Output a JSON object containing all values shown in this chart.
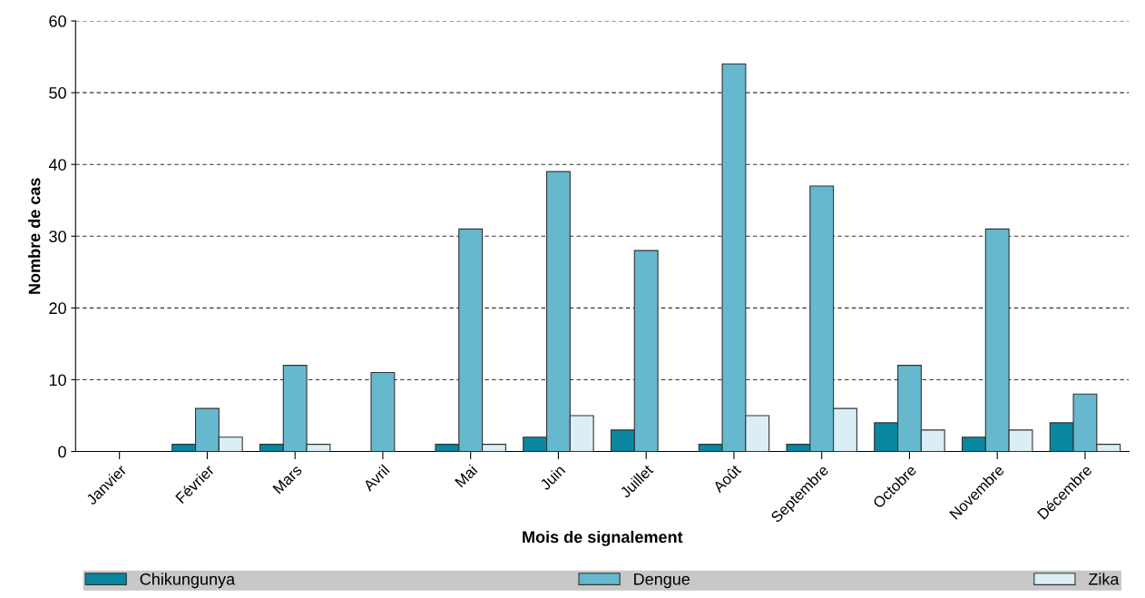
{
  "chart_data": {
    "type": "bar",
    "xlabel": "Mois de signalement",
    "ylabel": "Nombre de cas",
    "categories": [
      "Janvier",
      "Février",
      "Mars",
      "Avril",
      "Mai",
      "Juin",
      "Juillet",
      "Août",
      "Septembre",
      "Octobre",
      "Novembre",
      "Décembre"
    ],
    "series": [
      {
        "name": "Chikungunya",
        "color": "#0a86a0",
        "values": [
          0,
          1,
          1,
          0,
          1,
          2,
          3,
          1,
          1,
          4,
          2,
          4
        ]
      },
      {
        "name": "Dengue",
        "color": "#66b8ce",
        "values": [
          0,
          6,
          12,
          11,
          31,
          39,
          28,
          54,
          37,
          12,
          31,
          8
        ]
      },
      {
        "name": "Zika",
        "color": "#dbeef5",
        "values": [
          0,
          2,
          1,
          0,
          1,
          5,
          0,
          5,
          6,
          3,
          3,
          1
        ]
      }
    ],
    "ylim": [
      0,
      60
    ],
    "yticks": [
      0,
      10,
      20,
      30,
      40,
      50,
      60
    ],
    "grid": "y",
    "legend": "bottom"
  }
}
